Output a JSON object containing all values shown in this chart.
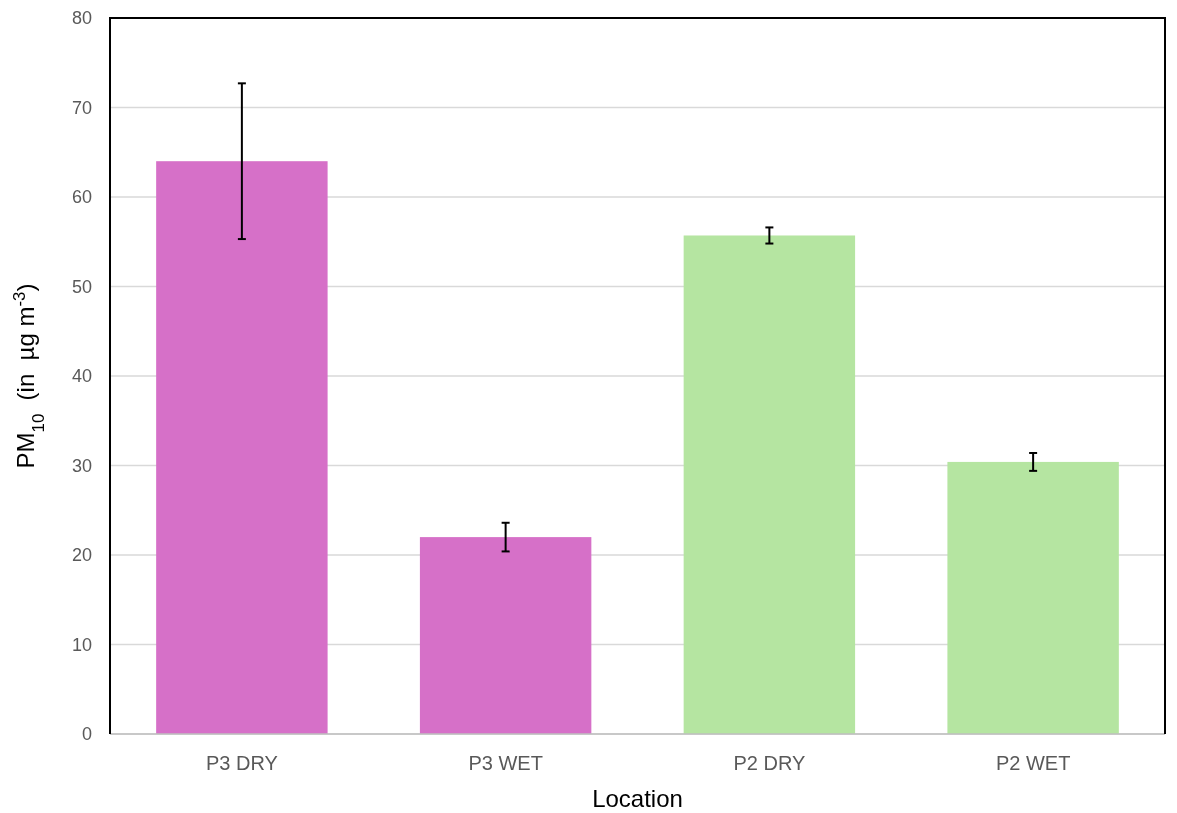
{
  "chart_data": {
    "type": "bar",
    "xlabel": "Location",
    "ylabel": "PM$_{10}$  (in  µg m$^{-3}$)",
    "categories": [
      "P3 DRY",
      "P3 WET",
      "P2 DRY",
      "P2 WET"
    ],
    "values": [
      64.0,
      22.0,
      55.7,
      30.4
    ],
    "colors": [
      "#d670c8",
      "#d670c8",
      "#b5e5a1",
      "#b5e5a1"
    ],
    "errors": [
      8.7,
      1.6,
      0.9,
      1.0
    ],
    "ylim": [
      0,
      80
    ],
    "yticks": [
      0,
      10,
      20,
      30,
      40,
      50,
      60,
      70,
      80
    ],
    "grid": "y"
  }
}
